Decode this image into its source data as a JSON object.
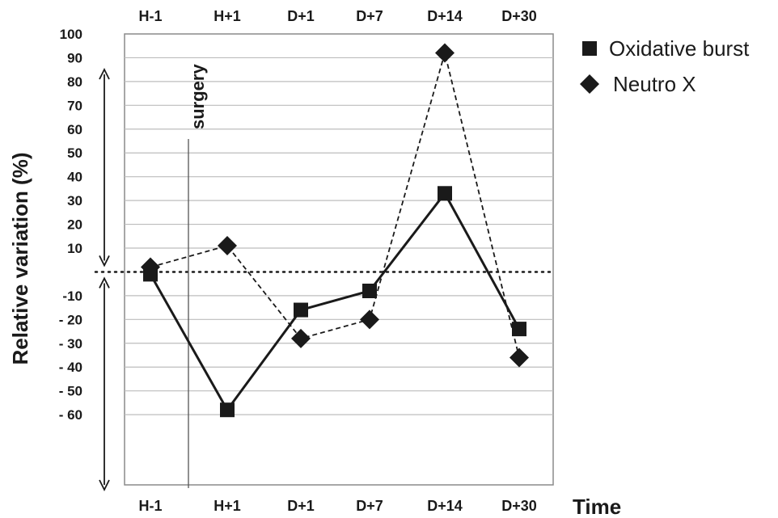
{
  "chart_data": {
    "type": "line",
    "title": "",
    "xlabel": "Time",
    "ylabel": "Relative variation (%)",
    "categories": [
      "H-1",
      "H+1",
      "D+1",
      "D+7",
      "D+14",
      "D+30"
    ],
    "ylim": [
      -70,
      100
    ],
    "y_ticks": [
      "100",
      "90",
      "80",
      "70",
      "60",
      "50",
      "40",
      "30",
      "20",
      "10",
      "-10",
      "- 20",
      "- 30",
      "- 40",
      "- 50",
      "- 60"
    ],
    "grid": true,
    "legend_position": "top-right",
    "series": [
      {
        "name": "Oxidative burst",
        "marker": "square",
        "line_style": "solid",
        "values": [
          -1,
          -58,
          -16,
          -8,
          33,
          -24
        ]
      },
      {
        "name": "Neutro X",
        "marker": "diamond",
        "line_style": "dashed",
        "values": [
          2,
          11,
          -28,
          -20,
          92,
          -36
        ]
      }
    ],
    "annotations": [
      {
        "text": "surgery"
      }
    ],
    "colors": {
      "lines": "#1a1a1a",
      "grid": "#bdbdbd",
      "frame": "#8a8a8a"
    }
  }
}
